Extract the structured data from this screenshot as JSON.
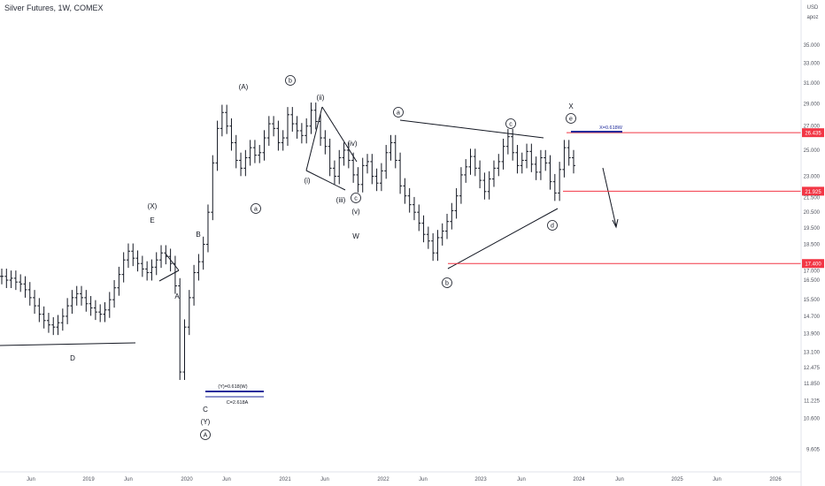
{
  "header": {
    "title": "Silver Futures, 1W, COMEX"
  },
  "price_scale": {
    "currency": "USD",
    "mode": "apoz"
  },
  "chart_data": {
    "type": "line",
    "title": "Silver Futures, 1W, COMEX",
    "xlabel": "",
    "ylabel": "",
    "y_scale": "log",
    "ylim": [
      9.3,
      39.5
    ],
    "grid": false,
    "x_tick_labels": [
      "Jun",
      "2019",
      "Jun",
      "2020",
      "Jun",
      "2021",
      "Jun",
      "2022",
      "Jun",
      "2023",
      "Jun",
      "2024",
      "Jun",
      "2025",
      "Jun",
      "2026"
    ],
    "y_tick_labels": [
      "35.000",
      "33.000",
      "31.000",
      "29.000",
      "27.000",
      "25.000",
      "23.000",
      "21.500",
      "20.500",
      "19.500",
      "18.500",
      "17.000",
      "16.500",
      "15.500",
      "14.700",
      "13.900",
      "13.100",
      "12.475",
      "11.850",
      "11.225",
      "10.600",
      "9.605"
    ],
    "price_badges": [
      {
        "label": "26.435",
        "value": 26.435,
        "color": "#f23645"
      },
      {
        "label": "21.925",
        "value": 21.925,
        "color": "#f23645"
      },
      {
        "label": "17.400",
        "value": 17.4,
        "color": "#f23645"
      }
    ],
    "horizontal_levels": [
      {
        "value": 26.435,
        "color": "#f23645"
      },
      {
        "value": 21.925,
        "color": "#f23645"
      },
      {
        "value": 17.4,
        "color": "#f23645"
      }
    ],
    "target_boxes": [
      {
        "label": "X=0.618W",
        "value": 26.6
      },
      {
        "label": "(Y)=0.618(W)",
        "value": 11.95
      },
      {
        "label": "C=2.618A",
        "value": 11.65
      }
    ],
    "wave_labels": {
      "plain": [
        "(X)",
        "E",
        "B",
        "(A)",
        "A",
        "D",
        "C",
        "(Y)",
        "W",
        "X",
        "(ii)",
        "(i)",
        "(iii)",
        "(iv)",
        "(v)"
      ],
      "circled": [
        "b",
        "a",
        "a",
        "c",
        "c",
        "b",
        "d",
        "e",
        "A"
      ]
    },
    "series": [
      {
        "values": [
          16.7,
          16.5,
          16.6,
          16.4,
          16.3,
          16.0,
          15.6,
          15.2,
          14.8,
          14.5,
          14.3,
          14.2,
          14.4,
          14.7,
          15.2,
          15.6,
          15.8,
          15.6,
          15.3,
          15.1,
          14.9,
          14.8,
          15.0,
          15.5,
          16.1,
          16.8,
          17.6,
          18.1,
          17.7,
          17.4,
          17.1,
          16.9,
          17.2,
          17.6,
          18.0,
          17.8,
          17.4,
          16.2,
          12.3,
          14.2,
          15.6,
          16.9,
          17.5,
          18.5,
          20.5,
          24.0,
          26.8,
          28.2,
          27.0,
          25.6,
          24.2,
          23.6,
          24.4,
          25.2,
          24.6,
          24.8,
          26.0,
          27.2,
          26.8,
          25.6,
          26.0,
          28.0,
          27.2,
          26.6,
          26.2,
          27.0,
          28.4,
          27.4,
          26.0,
          25.3,
          23.6,
          23.0,
          24.4,
          25.0,
          24.2,
          23.1,
          22.4,
          23.8,
          24.1,
          23.0,
          22.5,
          23.4,
          24.8,
          25.6,
          24.2,
          22.3,
          21.6,
          21.0,
          20.5,
          19.8,
          19.1,
          18.7,
          18.0,
          18.9,
          19.3,
          19.9,
          20.6,
          21.6,
          23.1,
          23.7,
          24.5,
          23.6,
          22.7,
          21.9,
          22.8,
          23.6,
          24.1,
          25.3,
          26.1,
          24.8,
          23.8,
          24.2,
          24.9,
          23.9,
          23.3,
          24.4,
          24.0,
          22.6,
          21.8,
          23.5,
          25.2,
          24.4,
          23.8
        ]
      }
    ]
  }
}
